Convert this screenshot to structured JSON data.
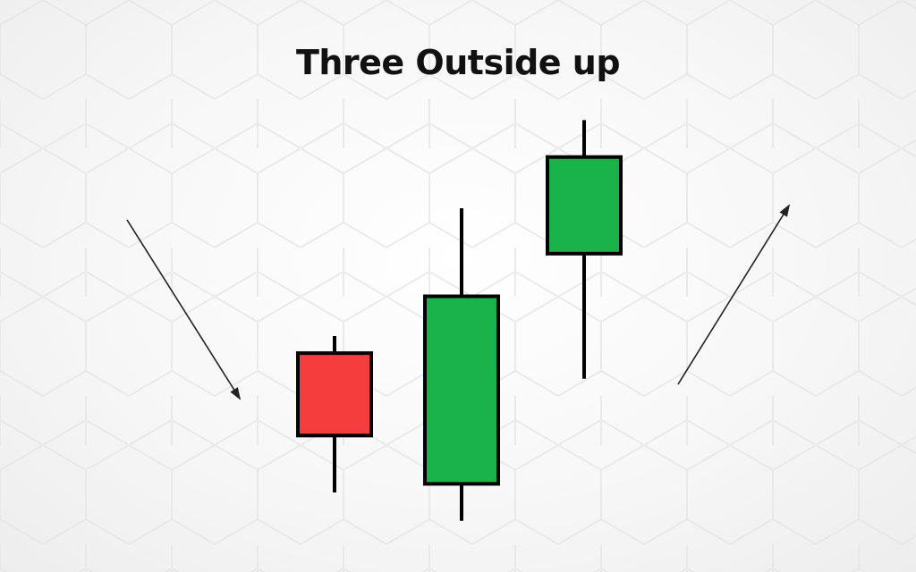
{
  "title": "Three Outside up",
  "colors": {
    "bearish": "#f53d3d",
    "bullish": "#1ab24b",
    "outline": "#000000",
    "arrow": "#222222"
  },
  "candles": [
    {
      "name": "candle-1-bearish",
      "type": "bearish",
      "open": 66,
      "high": 72,
      "low": 17,
      "close": 37
    },
    {
      "name": "candle-2-bullish",
      "type": "bullish",
      "open": 20,
      "high": 117,
      "low": 7,
      "close": 86
    },
    {
      "name": "candle-3-bullish",
      "type": "bullish",
      "open": 101,
      "high": 148,
      "low": 57,
      "close": 135
    }
  ],
  "trend_arrows": [
    {
      "name": "downtrend-arrow",
      "direction": "down"
    },
    {
      "name": "uptrend-arrow",
      "direction": "up"
    }
  ]
}
